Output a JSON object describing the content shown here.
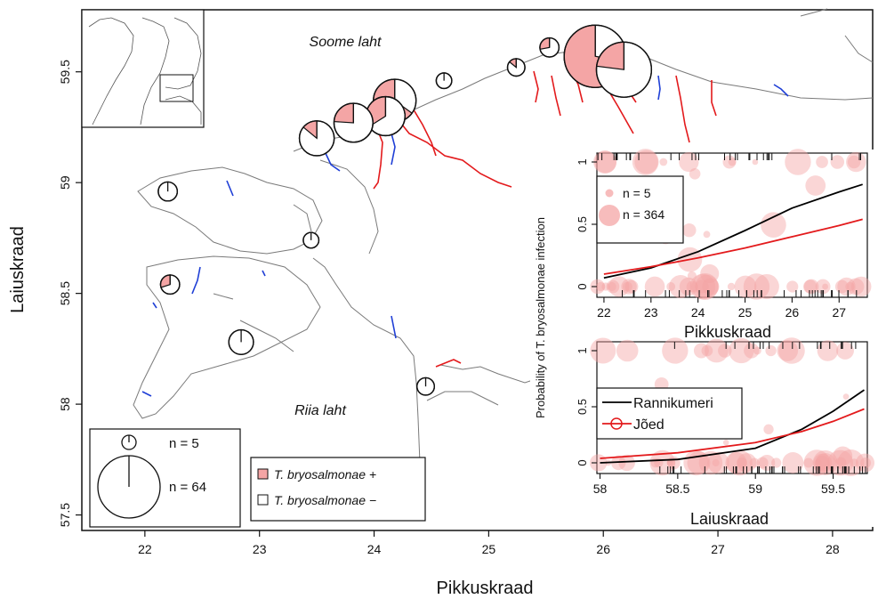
{
  "map": {
    "axis_x_label": "Pikkuskraad",
    "axis_y_label": "Laiuskraad",
    "x_ticks": [
      22,
      23,
      24,
      25,
      26,
      27,
      28
    ],
    "y_ticks": [
      57.5,
      58,
      58.5,
      59,
      59.5
    ],
    "x_range": [
      21.45,
      28.35
    ],
    "y_range": [
      57.43,
      59.78
    ],
    "sea_labels": {
      "north": "Soome laht",
      "south": "Riia laht"
    },
    "colors": {
      "positive": "#f4a5a5",
      "negative": "#ffffff",
      "outline": "#111111",
      "river_infected": "#e31a1c",
      "river_clean": "#1f3fd6",
      "coast": "#7a7a7a"
    },
    "pie_sites": [
      {
        "lon": 25.93,
        "lat": 59.57,
        "n": 64,
        "pos": 0.72
      },
      {
        "lon": 26.18,
        "lat": 59.51,
        "n": 50,
        "pos": 0.23
      },
      {
        "lon": 25.53,
        "lat": 59.61,
        "n": 6,
        "pos": 0.28
      },
      {
        "lon": 25.24,
        "lat": 59.52,
        "n": 5,
        "pos": 0.14
      },
      {
        "lon": 24.61,
        "lat": 59.46,
        "n": 4,
        "pos": 0.0
      },
      {
        "lon": 24.18,
        "lat": 59.37,
        "n": 30,
        "pos": 0.65
      },
      {
        "lon": 24.1,
        "lat": 59.3,
        "n": 25,
        "pos": 0.34
      },
      {
        "lon": 23.82,
        "lat": 59.27,
        "n": 25,
        "pos": 0.24
      },
      {
        "lon": 23.5,
        "lat": 59.2,
        "n": 20,
        "pos": 0.14
      },
      {
        "lon": 22.2,
        "lat": 58.96,
        "n": 6,
        "pos": 0.0
      },
      {
        "lon": 23.45,
        "lat": 58.74,
        "n": 4,
        "pos": 0.0
      },
      {
        "lon": 22.22,
        "lat": 58.54,
        "n": 6,
        "pos": 0.3
      },
      {
        "lon": 22.84,
        "lat": 58.28,
        "n": 10,
        "pos": 0.0
      },
      {
        "lon": 24.45,
        "lat": 58.08,
        "n": 5,
        "pos": 0.0
      }
    ],
    "size_legend": {
      "small": "n = 5",
      "large": "n = 64"
    },
    "color_legend": {
      "positive_label": "T. bryosalmonae +",
      "negative_label": "T. bryosalmonae −"
    }
  },
  "inset": {
    "y_label": "Probability of T. bryosalmonae infection",
    "top": {
      "x_label": "Pikkuskraad",
      "x_ticks": [
        22,
        23,
        24,
        25,
        26,
        27
      ],
      "y_ticks": [
        0,
        0.5,
        1
      ],
      "x_range": [
        21.85,
        27.6
      ],
      "legend": {
        "small": "n = 5",
        "large": "n = 364"
      }
    },
    "bottom": {
      "x_label": "Laiuskraad",
      "x_ticks": [
        58,
        58.5,
        59,
        59.5
      ],
      "y_ticks": [
        0,
        0.5,
        1
      ],
      "x_range": [
        57.98,
        59.72
      ],
      "legend": {
        "line1": "Rannikumeri",
        "line2": "Jõed"
      }
    }
  },
  "chart_data": [
    {
      "type": "line",
      "title": "",
      "xlabel": "Pikkuskraad",
      "ylabel": "Probability of T. bryosalmonae infection",
      "xlim": [
        21.85,
        27.6
      ],
      "ylim": [
        0,
        1
      ],
      "x": [
        22,
        23,
        24,
        25,
        26,
        27,
        27.5
      ],
      "series": [
        {
          "name": "Rannikumeri",
          "color": "#000000",
          "values": [
            0.07,
            0.15,
            0.28,
            0.45,
            0.63,
            0.76,
            0.82
          ]
        },
        {
          "name": "Jõed",
          "color": "#e31a1c",
          "values": [
            0.1,
            0.16,
            0.23,
            0.31,
            0.4,
            0.49,
            0.54
          ]
        }
      ]
    },
    {
      "type": "line",
      "title": "",
      "xlabel": "Laiuskraad",
      "ylabel": "Probability of T. bryosalmonae infection",
      "xlim": [
        57.98,
        59.72
      ],
      "ylim": [
        0,
        1
      ],
      "x": [
        58.0,
        58.5,
        59.0,
        59.3,
        59.5,
        59.7
      ],
      "series": [
        {
          "name": "Rannikumeri",
          "color": "#000000",
          "values": [
            0.0,
            0.03,
            0.13,
            0.3,
            0.46,
            0.65
          ]
        },
        {
          "name": "Jõed",
          "color": "#e31a1c",
          "values": [
            0.04,
            0.09,
            0.18,
            0.28,
            0.37,
            0.48
          ]
        }
      ]
    }
  ]
}
